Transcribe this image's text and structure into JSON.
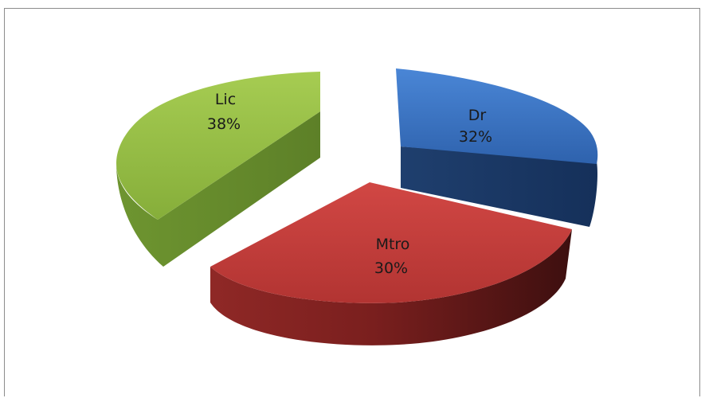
{
  "chart_data": {
    "type": "pie",
    "variant": "3d-exploded",
    "title": "",
    "slices": [
      {
        "label": "Dr",
        "value": 32,
        "display": "32%",
        "color": "#3d78c6"
      },
      {
        "label": "Mtro",
        "value": 30,
        "display": "30%",
        "color": "#c23b3a"
      },
      {
        "label": "Lic",
        "value": 38,
        "display": "38%",
        "color": "#96be45"
      }
    ],
    "legend": "none"
  }
}
